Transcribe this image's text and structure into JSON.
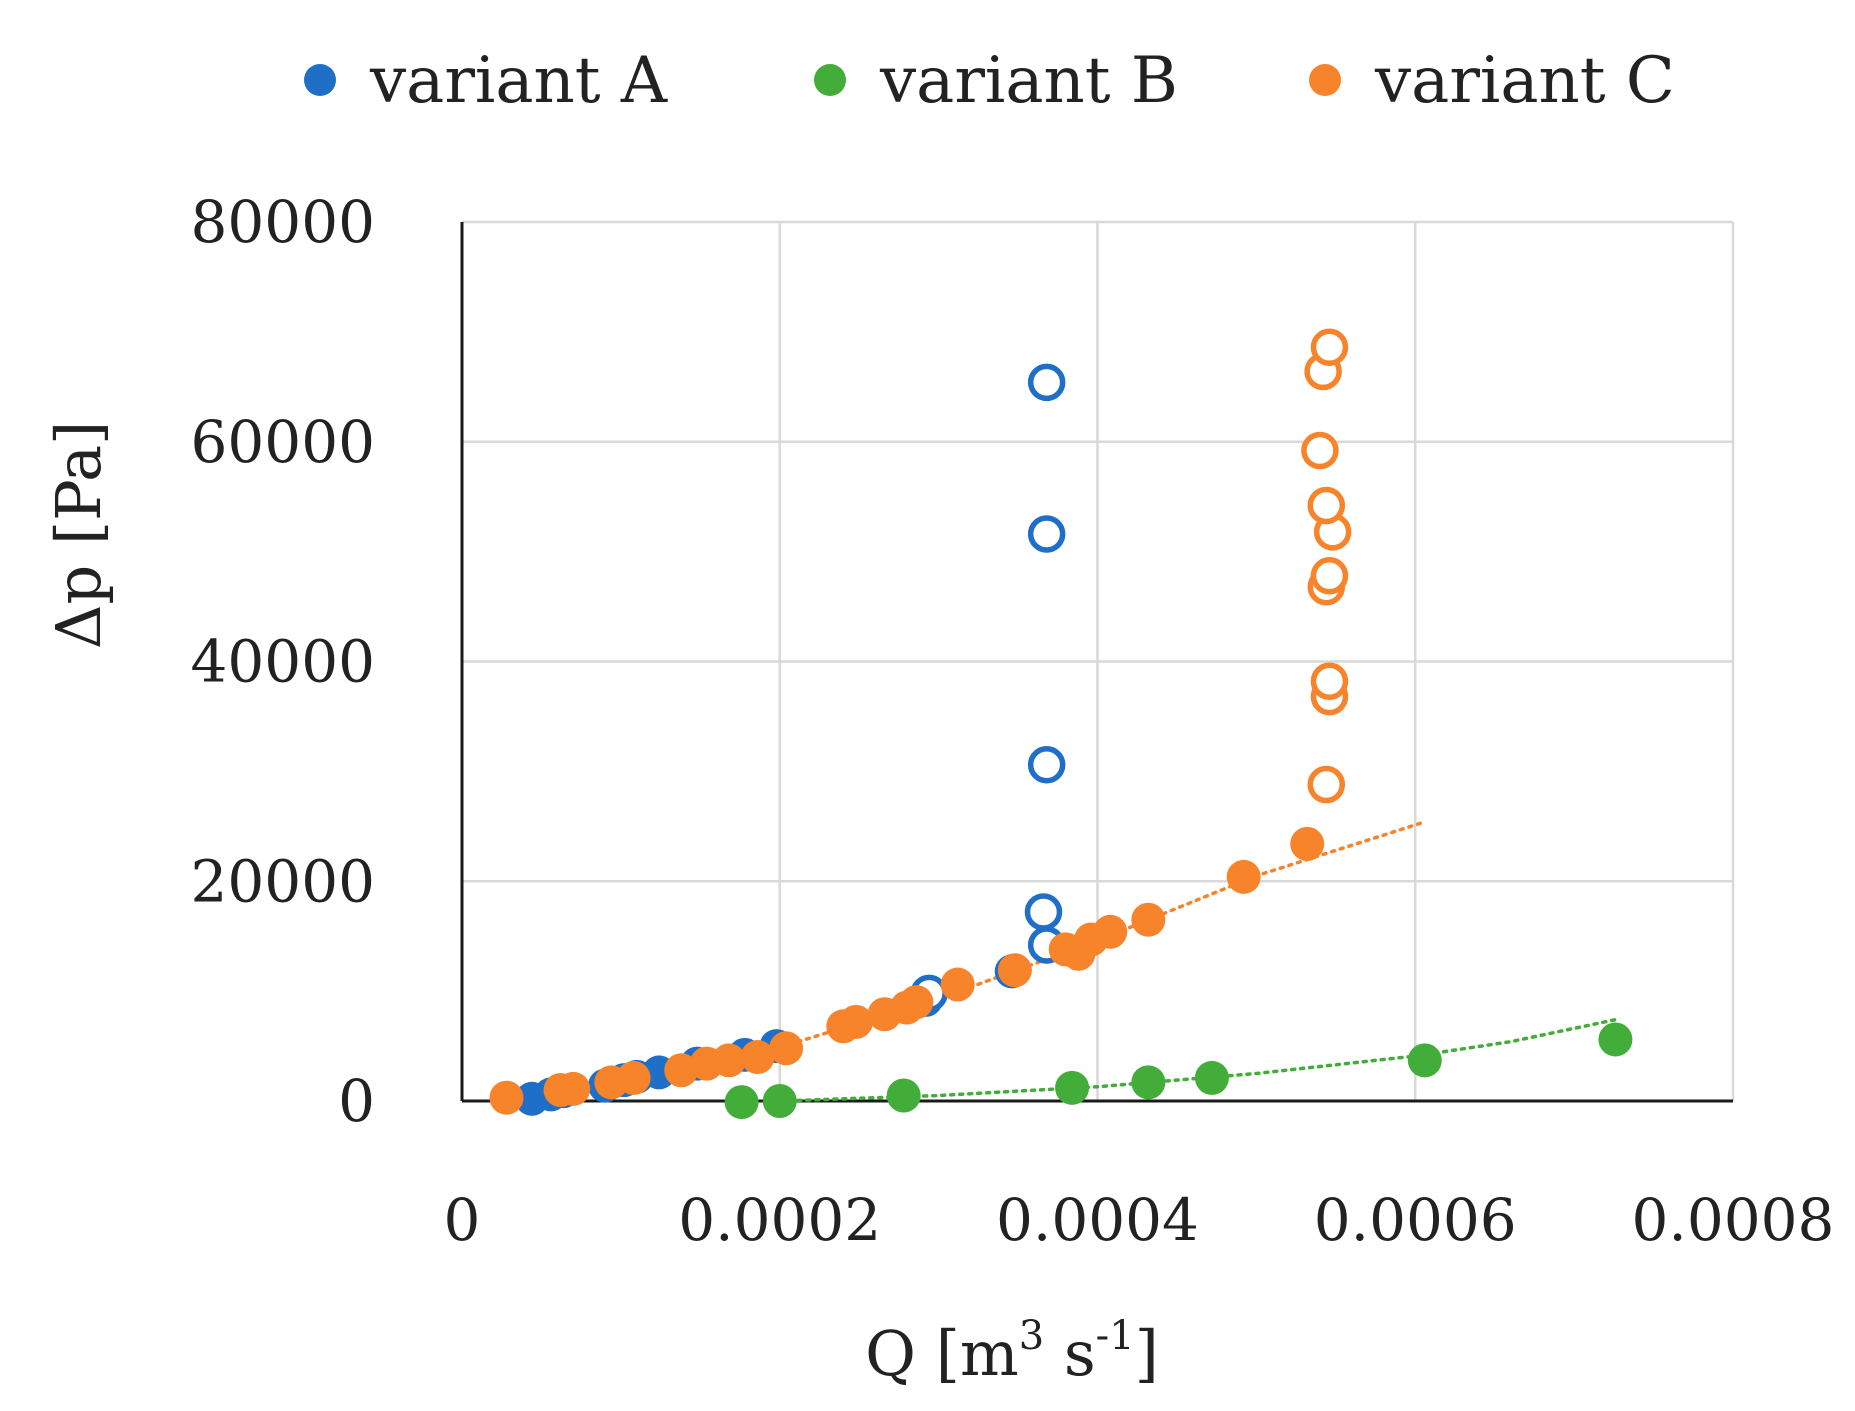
{
  "chart_data": {
    "type": "scatter",
    "title": "",
    "xlabel": {
      "base": "Q [m",
      "sup1": "3",
      "mid": " s",
      "sup2": "-1",
      "end": "]"
    },
    "ylabel": "Δp [Pa]",
    "xlim": [
      0,
      0.0008
    ],
    "ylim": [
      0,
      80000
    ],
    "xticks": [
      0,
      0.0002,
      0.0004,
      0.0006,
      0.0008
    ],
    "xtick_labels": [
      "0",
      "0.0002",
      "0.0004",
      "0.0006",
      "0.0008"
    ],
    "yticks": [
      0,
      20000,
      40000,
      60000,
      80000
    ],
    "ytick_labels": [
      "0",
      "20000",
      "40000",
      "60000",
      "80000"
    ],
    "grid": true,
    "legend_position": "top",
    "series": [
      {
        "name": "variant A",
        "color": "#1f6fc8",
        "filled_points": [
          [
            4.4e-05,
            200
          ],
          [
            5.6e-05,
            600
          ],
          [
            6.4e-05,
            900
          ],
          [
            9e-05,
            1400
          ],
          [
            0.000102,
            1900
          ],
          [
            0.00011,
            2200
          ],
          [
            0.000124,
            2600
          ],
          [
            0.000148,
            3400
          ],
          [
            0.000178,
            4200
          ],
          [
            0.000198,
            5000
          ],
          [
            0.000292,
            9200
          ],
          [
            0.000346,
            11800
          ]
        ],
        "open_points": [
          [
            0.000294,
            9800
          ],
          [
            0.000366,
            17200
          ],
          [
            0.000368,
            14200
          ],
          [
            0.000368,
            30600
          ],
          [
            0.000368,
            51600
          ],
          [
            0.000368,
            65400
          ]
        ]
      },
      {
        "name": "variant B",
        "color": "#43ad3a",
        "filled_points": [
          [
            0.000176,
            -100
          ],
          [
            0.0002,
            0
          ],
          [
            0.000278,
            500
          ],
          [
            0.000384,
            1200
          ],
          [
            0.000432,
            1700
          ],
          [
            0.000472,
            2100
          ],
          [
            0.000606,
            3700
          ],
          [
            0.000726,
            5600
          ]
        ],
        "open_points": [],
        "trendline": [
          [
            0.0002,
            0
          ],
          [
            0.0003,
            500
          ],
          [
            0.0004,
            1300
          ],
          [
            0.0005,
            2500
          ],
          [
            0.0006,
            4100
          ],
          [
            0.00066,
            5400
          ],
          [
            0.000726,
            7400
          ]
        ]
      },
      {
        "name": "variant C",
        "color": "#f7832b",
        "filled_points": [
          [
            2.8e-05,
            300
          ],
          [
            6.2e-05,
            1000
          ],
          [
            7e-05,
            1100
          ],
          [
            9.4e-05,
            1700
          ],
          [
            0.000108,
            2100
          ],
          [
            0.000138,
            2800
          ],
          [
            0.000154,
            3400
          ],
          [
            0.000168,
            3700
          ],
          [
            0.000186,
            4000
          ],
          [
            0.000204,
            4800
          ],
          [
            0.00024,
            6800
          ],
          [
            0.000248,
            7200
          ],
          [
            0.000266,
            7900
          ],
          [
            0.00028,
            8500
          ],
          [
            0.000286,
            9000
          ],
          [
            0.000312,
            10600
          ],
          [
            0.000348,
            11900
          ],
          [
            0.00038,
            13800
          ],
          [
            0.000388,
            13400
          ],
          [
            0.000396,
            14700
          ],
          [
            0.000408,
            15400
          ],
          [
            0.000432,
            16500
          ],
          [
            0.000492,
            20400
          ],
          [
            0.000532,
            23400
          ]
        ],
        "open_points": [
          [
            0.000544,
            28800
          ],
          [
            0.000546,
            36800
          ],
          [
            0.000546,
            38200
          ],
          [
            0.000544,
            46800
          ],
          [
            0.000546,
            47800
          ],
          [
            0.000548,
            51800
          ],
          [
            0.000544,
            54200
          ],
          [
            0.00054,
            59200
          ],
          [
            0.000542,
            66400
          ],
          [
            0.000546,
            68600
          ]
        ],
        "trendline": [
          [
            2.8e-05,
            300
          ],
          [
            0.0001,
            1800
          ],
          [
            0.0002,
            4900
          ],
          [
            0.0003,
            9300
          ],
          [
            0.0004,
            14600
          ],
          [
            0.0005,
            20500
          ],
          [
            0.000606,
            25400
          ]
        ]
      }
    ]
  }
}
